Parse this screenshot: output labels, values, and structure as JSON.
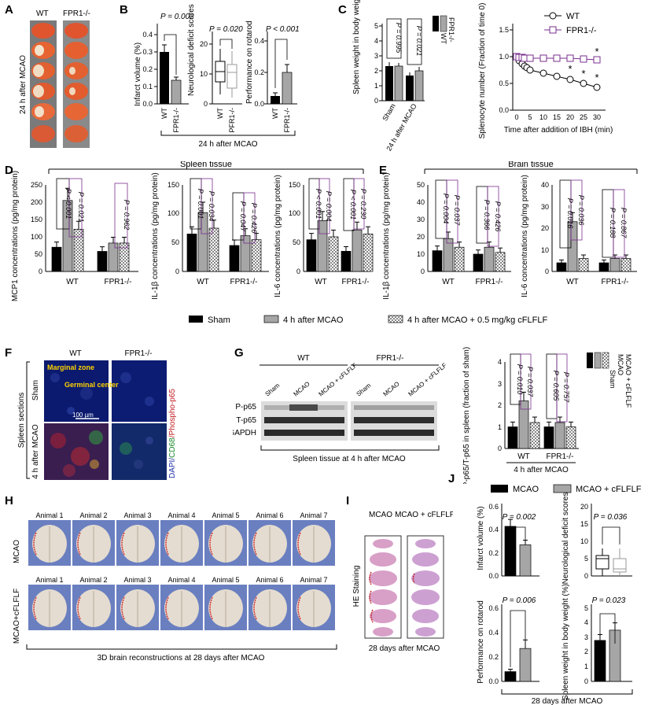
{
  "panel_letters": [
    "A",
    "B",
    "C",
    "D",
    "E",
    "F",
    "G",
    "H",
    "I",
    "J"
  ],
  "colors": {
    "wt_black": "#000000",
    "ko_gray": "#a6a6a6",
    "purple": "#7a2f8f",
    "brain_blue": "#6a7fc0",
    "he_pink": "#d89fc7"
  },
  "A": {
    "wt": "WT",
    "ko": "FPR1-/-",
    "side": "24 h after MCAO"
  },
  "B": {
    "footer": "24 h after MCAO",
    "infarct": {
      "ylabel": "Infarct volume (%)",
      "p": "P = 0.002",
      "yticks": [
        "0.0",
        "0.1",
        "0.2",
        "0.3",
        "0.4"
      ],
      "xcats": [
        "WT",
        "FPR1-/-"
      ]
    },
    "neuro": {
      "ylabel": "Neurological deficit scores",
      "p": "P = 0.020",
      "yticks": [
        "0",
        "10",
        "20"
      ],
      "xcats": [
        "WT",
        "PFR1-/-"
      ]
    },
    "rotarod": {
      "ylabel": "Performance on rotarod",
      "p": "P < 0.001",
      "yticks": [
        "0.0",
        "0.2",
        "0.4"
      ],
      "xcats": [
        "WT",
        "FPR1-/-"
      ]
    }
  },
  "C": {
    "spleen": {
      "ylabel": "Spleen weight in body weight (%)",
      "yticks": [
        "0",
        "1",
        "2",
        "3",
        "4",
        "5"
      ],
      "xcats": [
        "Sham",
        "24 h after MCAO"
      ],
      "p1": "P = 0.995",
      "p2": "P = 0.021",
      "legend": [
        "WT",
        "FPR1-/-"
      ]
    },
    "splenocyte": {
      "ylabel": "Splenocyte number (Fraction of time 0)",
      "xlabel": "Time after addition of IBH (min)",
      "yticks": [
        "0.0",
        "0.5",
        "1.0",
        "1.5"
      ],
      "xticks": [
        "0",
        "5",
        "10",
        "15",
        "20",
        "25",
        "30"
      ],
      "legend": [
        "WT",
        "FPR1-/-"
      ],
      "star": "*"
    }
  },
  "D": {
    "title": "Spleen tissue",
    "mcp1": {
      "ylabel": "MCP1 concentrations (pg/mg protein)",
      "yticks": [
        "0",
        "50",
        "100",
        "150",
        "200",
        "250"
      ],
      "xcats": [
        "WT",
        "FPR1-/-"
      ],
      "ps": [
        "P < 0.001",
        "P = 0.021",
        "P = 0.962"
      ]
    },
    "il1b": {
      "ylabel": "IL-1β concentrations (pg/mg protein)",
      "yticks": [
        "0",
        "50",
        "100",
        "150"
      ],
      "xcats": [
        "WT",
        "FPR1-/-"
      ],
      "ps": [
        "P = 0.001",
        "P = 0.034",
        "P = 0.047",
        "P = 0.426"
      ]
    },
    "il6": {
      "ylabel": "IL-6 concentrations (pg/mg protein)",
      "yticks": [
        "0",
        "50",
        "100",
        "150"
      ],
      "xcats": [
        "WT",
        "FPR1-/-"
      ],
      "ps": [
        "P < 0.001",
        "P = 0.004",
        "P < 0.001",
        "P = 0.230"
      ]
    }
  },
  "E": {
    "title": "Brain tissue",
    "il1b": {
      "ylabel": "IL-1β concentrations (pg/mg protein)",
      "yticks": [
        "0",
        "10",
        "20",
        "30",
        "40",
        "50"
      ],
      "xcats": [
        "WT",
        "FPR1-/-"
      ],
      "ps": [
        "P = 0.004",
        "P = 0.037",
        "P = 0.366",
        "P = 0.426"
      ]
    },
    "il6": {
      "ylabel": "IL-6 concentrations (pg/mg protein)",
      "yticks": [
        "0",
        "10",
        "20",
        "30",
        "40"
      ],
      "xcats": [
        "WT",
        "FPR1-/-"
      ],
      "ps": [
        "P = 0.016",
        "P = 0.036",
        "P = 0.188",
        "P = 0.867"
      ]
    }
  },
  "legendDE": [
    "Sham",
    "4 h after MCAO",
    "4 h after MCAO + 0.5 mg/kg cFLFLF"
  ],
  "F": {
    "wt": "WT",
    "ko": "FPR1-/-",
    "marginal": "Marginal zone",
    "germinal": "Germinal center",
    "scale": "100 µm",
    "sham": "Sham",
    "mcao": "4 h after MCAO",
    "side": "Spleen sections",
    "stain_dapi": "DAPI/",
    "stain_cd68": "CD68",
    "stain_p65": "/Phospho-p65"
  },
  "G": {
    "wt": "WT",
    "ko": "FPR1-/-",
    "lanes": [
      "Sham",
      "MCAO",
      "MCAO + cFLFLF",
      "Sham",
      "MCAO",
      "MCAO + cFLFLF"
    ],
    "rows": [
      "P-p65",
      "T-p65",
      "GAPDH"
    ],
    "caption": "Spleen tissue at 4 h after MCAO",
    "chart": {
      "ylabel": "P-p65/T-p65 in spleen (fraction of sham)",
      "yticks": [
        "0",
        "1",
        "2",
        "3",
        "4"
      ],
      "xcats": [
        "WT",
        "FPR1-/-"
      ],
      "footer": "4 h after MCAO",
      "ps": [
        "P = 0.010",
        "P = 0.037",
        "P = 0.605",
        "P = 0.757"
      ],
      "legend": [
        "Sham",
        "MCAO",
        "MCAO + cFLFLF"
      ]
    }
  },
  "H": {
    "row1": "MCAO",
    "row2": "MCAO+cFLFLF",
    "animals": [
      "Animal 1",
      "Animal 2",
      "Animal 3",
      "Animal 4",
      "Animal 5",
      "Animal 6",
      "Animal 7"
    ],
    "caption": "3D brain reconstructions at 28 days after MCAO"
  },
  "I": {
    "col1": "MCAO",
    "col2": "MCAO + cFLFLF",
    "side": "HE Staining",
    "caption": "28 days after MCAO"
  },
  "J": {
    "legend": [
      "MCAO",
      "MCAO + cFLFLF"
    ],
    "footer": "28 days after MCAO",
    "infarct": {
      "ylabel": "Infarct volume (%)",
      "p": "P = 0.002",
      "yticks": [
        "0.0",
        "0.2",
        "0.4",
        "0.6"
      ]
    },
    "neuro": {
      "ylabel": "Neurological deficit scores",
      "p": "P = 0.036",
      "yticks": [
        "0",
        "5",
        "10",
        "15",
        "20"
      ]
    },
    "rotarod": {
      "ylabel": "Performance on rotarod",
      "p": "P = 0.006",
      "yticks": [
        "0.0",
        "0.2",
        "0.4",
        "0.6"
      ]
    },
    "spleen": {
      "ylabel": "Spleen weight in body weight (%)",
      "p": "P = 0.023",
      "yticks": [
        "0",
        "1",
        "2",
        "3",
        "4",
        "5"
      ]
    }
  },
  "chart_data": [
    {
      "type": "bar",
      "id": "B-infarct",
      "categories": [
        "WT",
        "FPR1-/-"
      ],
      "values": [
        0.4,
        0.18
      ],
      "errors": [
        0.04,
        0.02
      ],
      "ylim": [
        0,
        0.45
      ]
    },
    {
      "type": "box",
      "id": "B-neuro",
      "categories": [
        "WT",
        "PFR1-/-"
      ],
      "median": [
        11,
        8
      ],
      "q1": [
        8,
        5
      ],
      "q3": [
        14,
        13
      ],
      "min": [
        3,
        2
      ],
      "max": [
        19,
        18
      ],
      "ylim": [
        0,
        24
      ]
    },
    {
      "type": "bar",
      "id": "B-rotarod",
      "categories": [
        "WT",
        "FPR1-/-"
      ],
      "values": [
        0.05,
        0.3
      ],
      "errors": [
        0.02,
        0.05
      ],
      "ylim": [
        0,
        0.45
      ]
    },
    {
      "type": "bar",
      "id": "C-spleen",
      "categories": [
        "Sham",
        "24 h after MCAO"
      ],
      "series": [
        {
          "name": "WT",
          "values": [
            2.35,
            1.7
          ],
          "errors": [
            0.2,
            0.2
          ]
        },
        {
          "name": "FPR1-/-",
          "values": [
            2.35,
            2.0
          ],
          "errors": [
            0.15,
            0.25
          ]
        }
      ],
      "ylim": [
        0,
        5
      ]
    },
    {
      "type": "line",
      "id": "C-splenocyte",
      "x": [
        0,
        1,
        2,
        3,
        4,
        5,
        10,
        15,
        20,
        25,
        30
      ],
      "series": [
        {
          "name": "WT",
          "values": [
            1.0,
            0.93,
            0.87,
            0.83,
            0.8,
            0.75,
            0.68,
            0.63,
            0.58,
            0.5,
            0.43
          ]
        },
        {
          "name": "FPR1-/-",
          "values": [
            1.0,
            0.99,
            0.98,
            0.97,
            0.97,
            0.97,
            0.97,
            0.96,
            0.96,
            0.95,
            0.94
          ]
        }
      ],
      "ylim": [
        0,
        1.5
      ],
      "xlim": [
        0,
        30
      ]
    },
    {
      "type": "bar",
      "id": "D-mcp1",
      "categories": [
        "WT",
        "FPR1-/-"
      ],
      "series": [
        {
          "name": "Sham",
          "values": [
            70,
            58
          ]
        },
        {
          "name": "4 h after MCAO",
          "values": [
            205,
            82
          ]
        },
        {
          "name": "4 h after MCAO + 0.5 mg/kg cFLFLF",
          "values": [
            122,
            82
          ]
        }
      ],
      "ylim": [
        0,
        250
      ]
    },
    {
      "type": "bar",
      "id": "D-il1b",
      "categories": [
        "WT",
        "FPR1-/-"
      ],
      "series": [
        {
          "name": "Sham",
          "values": [
            65,
            45
          ]
        },
        {
          "name": "4 h after MCAO",
          "values": [
            102,
            62
          ]
        },
        {
          "name": "4 h after MCAO + 0.5 mg/kg cFLFLF",
          "values": [
            75,
            55
          ]
        }
      ],
      "ylim": [
        0,
        150
      ]
    },
    {
      "type": "bar",
      "id": "D-il6",
      "categories": [
        "WT",
        "FPR1-/-"
      ],
      "series": [
        {
          "name": "Sham",
          "values": [
            55,
            35
          ]
        },
        {
          "name": "4 h after MCAO",
          "values": [
            88,
            72
          ]
        },
        {
          "name": "4 h after MCAO + 0.5 mg/kg cFLFLF",
          "values": [
            60,
            65
          ]
        }
      ],
      "ylim": [
        0,
        150
      ]
    },
    {
      "type": "bar",
      "id": "E-il1b",
      "categories": [
        "WT",
        "FPR1-/-"
      ],
      "series": [
        {
          "name": "Sham",
          "values": [
            12,
            10
          ]
        },
        {
          "name": "4 h after MCAO",
          "values": [
            19,
            14
          ]
        },
        {
          "name": "4 h after MCAO + 0.5 mg/kg cFLFLF",
          "values": [
            14,
            11
          ]
        }
      ],
      "ylim": [
        0,
        50
      ]
    },
    {
      "type": "bar",
      "id": "E-il6",
      "categories": [
        "WT",
        "FPR1-/-"
      ],
      "series": [
        {
          "name": "Sham",
          "values": [
            4,
            4
          ]
        },
        {
          "name": "4 h after MCAO",
          "values": [
            23,
            6
          ]
        },
        {
          "name": "4 h after MCAO + 0.5 mg/kg cFLFLF",
          "values": [
            6,
            6
          ]
        }
      ],
      "ylim": [
        0,
        40
      ]
    },
    {
      "type": "bar",
      "id": "G-ratio",
      "categories": [
        "WT",
        "FPR1-/-"
      ],
      "series": [
        {
          "name": "Sham",
          "values": [
            1.0,
            1.0
          ]
        },
        {
          "name": "MCAO",
          "values": [
            2.2,
            1.2
          ]
        },
        {
          "name": "MCAO + cFLFLF",
          "values": [
            1.2,
            1.0
          ]
        }
      ],
      "ylim": [
        0,
        4
      ]
    },
    {
      "type": "bar",
      "id": "J-infarct",
      "categories": [
        "MCAO",
        "MCAO + cFLFLF"
      ],
      "values": [
        0.43,
        0.27
      ],
      "errors": [
        0.06,
        0.04
      ],
      "ylim": [
        0,
        0.6
      ]
    },
    {
      "type": "box",
      "id": "J-neuro",
      "categories": [
        "MCAO",
        "MCAO + cFLFLF"
      ],
      "median": [
        5,
        2
      ],
      "q1": [
        4,
        1
      ],
      "q3": [
        6,
        5
      ],
      "min": [
        0,
        0
      ],
      "max": [
        8,
        8
      ],
      "ylim": [
        0,
        20
      ]
    },
    {
      "type": "bar",
      "id": "J-rotarod",
      "categories": [
        "MCAO",
        "MCAO + cFLFLF"
      ],
      "values": [
        0.08,
        0.27
      ],
      "errors": [
        0.02,
        0.07
      ],
      "ylim": [
        0,
        0.6
      ]
    },
    {
      "type": "bar",
      "id": "J-spleen",
      "categories": [
        "MCAO",
        "MCAO + cFLFLF"
      ],
      "values": [
        2.8,
        3.5
      ],
      "errors": [
        0.4,
        0.5
      ],
      "ylim": [
        0,
        5
      ]
    }
  ]
}
